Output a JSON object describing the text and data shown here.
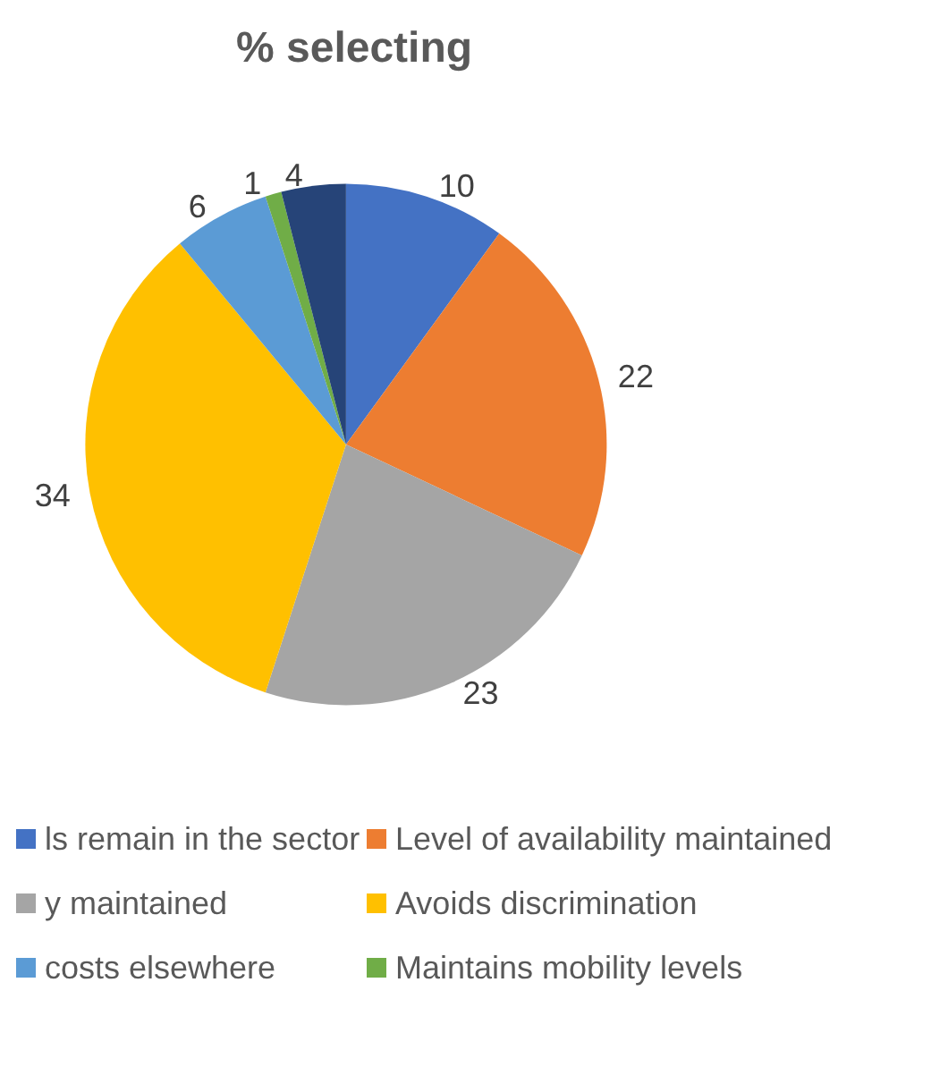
{
  "chart_data": {
    "type": "pie",
    "title": "% selecting",
    "categories": [
      "ls remain in the sector",
      "Level of availability maintained",
      "y maintained",
      "Avoids discrimination",
      "costs elsewhere",
      "Maintains mobility levels",
      null
    ],
    "values": [
      10,
      22,
      23,
      34,
      6,
      1,
      4
    ],
    "colors": [
      "#4472c4",
      "#ed7d31",
      "#a5a5a5",
      "#ffc000",
      "#5b9bd5",
      "#70ad47",
      "#264478"
    ],
    "data_labels": true,
    "legend": "bottom"
  }
}
